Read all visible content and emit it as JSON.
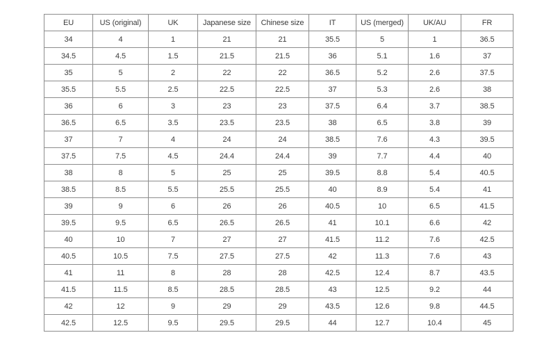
{
  "colors": {
    "background": "#ffffff",
    "text": "#3b3b3b",
    "border_inner": "#8c8c8c",
    "border_outer": "#4d4d4d"
  },
  "chart_data": {
    "type": "table",
    "columns": [
      "EU",
      "US (original)",
      "UK",
      "Japanese size",
      "Chinese size",
      "IT",
      "US (merged)",
      "UK/AU",
      "FR"
    ],
    "rows": [
      [
        "34",
        "4",
        "1",
        "21",
        "21",
        "35.5",
        "5",
        "1",
        "36.5"
      ],
      [
        "34.5",
        "4.5",
        "1.5",
        "21.5",
        "21.5",
        "36",
        "5.1",
        "1.6",
        "37"
      ],
      [
        "35",
        "5",
        "2",
        "22",
        "22",
        "36.5",
        "5.2",
        "2.6",
        "37.5"
      ],
      [
        "35.5",
        "5.5",
        "2.5",
        "22.5",
        "22.5",
        "37",
        "5.3",
        "2.6",
        "38"
      ],
      [
        "36",
        "6",
        "3",
        "23",
        "23",
        "37.5",
        "6.4",
        "3.7",
        "38.5"
      ],
      [
        "36.5",
        "6.5",
        "3.5",
        "23.5",
        "23.5",
        "38",
        "6.5",
        "3.8",
        "39"
      ],
      [
        "37",
        "7",
        "4",
        "24",
        "24",
        "38.5",
        "7.6",
        "4.3",
        "39.5"
      ],
      [
        "37.5",
        "7.5",
        "4.5",
        "24.4",
        "24.4",
        "39",
        "7.7",
        "4.4",
        "40"
      ],
      [
        "38",
        "8",
        "5",
        "25",
        "25",
        "39.5",
        "8.8",
        "5.4",
        "40.5"
      ],
      [
        "38.5",
        "8.5",
        "5.5",
        "25.5",
        "25.5",
        "40",
        "8.9",
        "5.4",
        "41"
      ],
      [
        "39",
        "9",
        "6",
        "26",
        "26",
        "40.5",
        "10",
        "6.5",
        "41.5"
      ],
      [
        "39.5",
        "9.5",
        "6.5",
        "26.5",
        "26.5",
        "41",
        "10.1",
        "6.6",
        "42"
      ],
      [
        "40",
        "10",
        "7",
        "27",
        "27",
        "41.5",
        "11.2",
        "7.6",
        "42.5"
      ],
      [
        "40.5",
        "10.5",
        "7.5",
        "27.5",
        "27.5",
        "42",
        "11.3",
        "7.6",
        "43"
      ],
      [
        "41",
        "11",
        "8",
        "28",
        "28",
        "42.5",
        "12.4",
        "8.7",
        "43.5"
      ],
      [
        "41.5",
        "11.5",
        "8.5",
        "28.5",
        "28.5",
        "43",
        "12.5",
        "9.2",
        "44"
      ],
      [
        "42",
        "12",
        "9",
        "29",
        "29",
        "43.5",
        "12.6",
        "9.8",
        "44.5"
      ],
      [
        "42.5",
        "12.5",
        "9.5",
        "29.5",
        "29.5",
        "44",
        "12.7",
        "10.4",
        "45"
      ]
    ]
  }
}
